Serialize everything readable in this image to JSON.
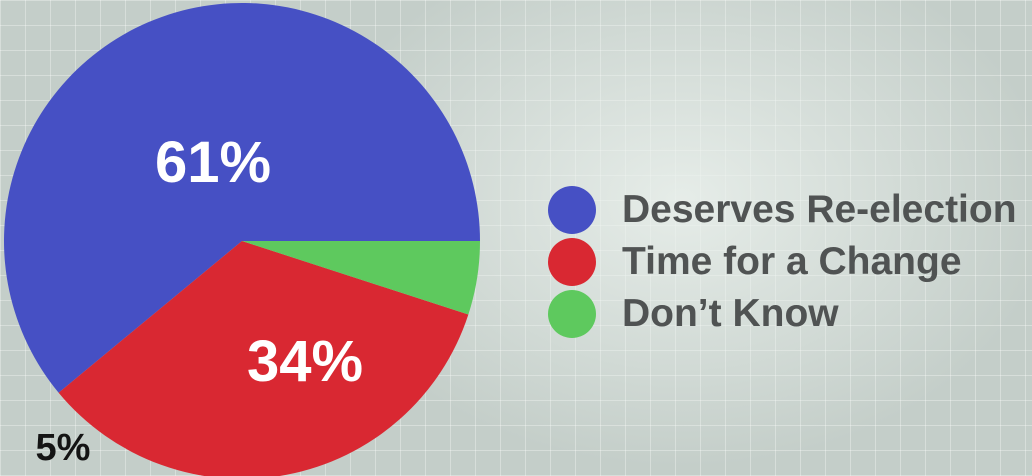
{
  "chart_data": {
    "type": "pie",
    "series": [
      {
        "name": "Deserves Re-election",
        "value": 61,
        "label": "61%",
        "color": "#4650c4"
      },
      {
        "name": "Time for a Change",
        "value": 34,
        "label": "34%",
        "color": "#d92832"
      },
      {
        "name": "Don’t Know",
        "value": 5,
        "label": "5%",
        "color": "#5ec95e"
      }
    ],
    "legend_position": "right"
  }
}
